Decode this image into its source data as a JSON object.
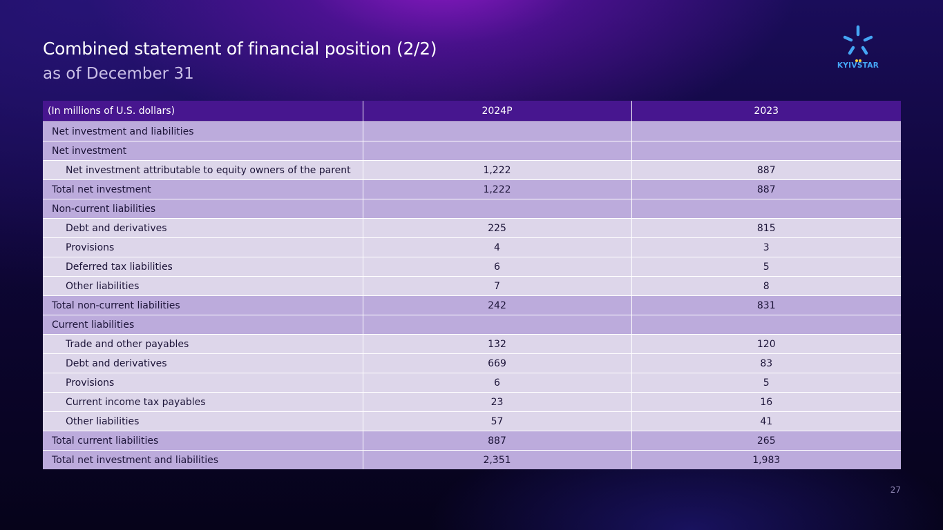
{
  "header": {
    "title": "Combined statement of financial position (2/2)",
    "subtitle": "as of December 31"
  },
  "logo": {
    "text": "KYIVSTAR",
    "icon": "kyivstar-star-icon",
    "color": "#45a6f5"
  },
  "table": {
    "columns": [
      "(In millions of U.S. dollars)",
      "2024P",
      "2023"
    ],
    "rows": [
      {
        "type": "heading",
        "label": "Net investment and liabilities",
        "v2024": "",
        "v2023": ""
      },
      {
        "type": "heading",
        "label": "Net investment",
        "v2024": "",
        "v2023": ""
      },
      {
        "type": "sub",
        "label": "Net investment attributable to equity owners of the parent",
        "v2024": "1,222",
        "v2023": "887"
      },
      {
        "type": "total",
        "label": "Total net investment",
        "v2024": "1,222",
        "v2023": "887"
      },
      {
        "type": "heading",
        "label": "Non-current liabilities",
        "v2024": "",
        "v2023": ""
      },
      {
        "type": "sub",
        "label": "Debt and derivatives",
        "v2024": "225",
        "v2023": "815"
      },
      {
        "type": "sub",
        "label": "Provisions",
        "v2024": "4",
        "v2023": "3"
      },
      {
        "type": "sub",
        "label": "Deferred tax liabilities",
        "v2024": "6",
        "v2023": "5"
      },
      {
        "type": "sub",
        "label": "Other liabilities",
        "v2024": "7",
        "v2023": "8"
      },
      {
        "type": "total",
        "label": "Total non-current liabilities",
        "v2024": "242",
        "v2023": "831"
      },
      {
        "type": "heading",
        "label": "Current liabilities",
        "v2024": "",
        "v2023": ""
      },
      {
        "type": "sub",
        "label": "Trade and other payables",
        "v2024": "132",
        "v2023": "120"
      },
      {
        "type": "sub",
        "label": "Debt and derivatives",
        "v2024": "669",
        "v2023": "83"
      },
      {
        "type": "sub",
        "label": "Provisions",
        "v2024": "6",
        "v2023": "5"
      },
      {
        "type": "sub",
        "label": "Current income tax payables",
        "v2024": "23",
        "v2023": "16"
      },
      {
        "type": "sub",
        "label": "Other liabilities",
        "v2024": "57",
        "v2023": "41"
      },
      {
        "type": "total",
        "label": "Total current liabilities",
        "v2024": "887",
        "v2023": "265"
      },
      {
        "type": "total",
        "label": "Total net investment and liabilities",
        "v2024": "2,351",
        "v2023": "1,983"
      }
    ]
  },
  "footer": {
    "page_number": "27"
  },
  "colors": {
    "header_row": "#47168f",
    "heading_row": "#bcabdc",
    "sub_row": "#ddd6ea",
    "background": "#0e0636"
  }
}
